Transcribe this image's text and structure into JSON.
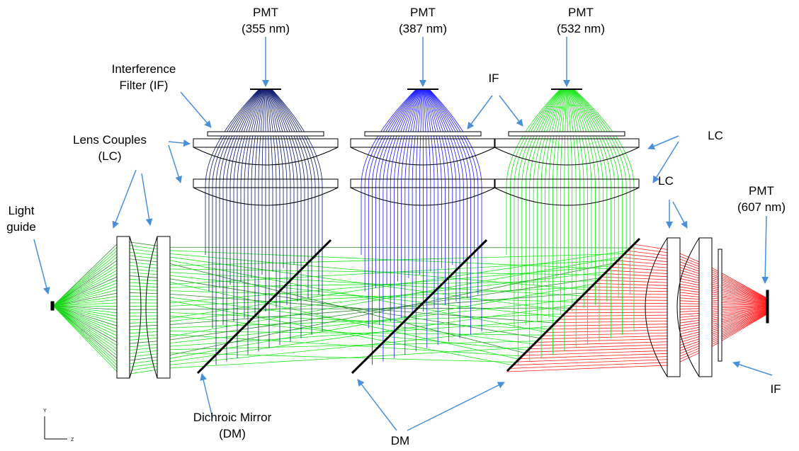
{
  "labels": [
    {
      "lines": [
        "PMT",
        "(355 nm)"
      ]
    },
    {
      "lines": [
        "PMT",
        "(387 nm)"
      ]
    },
    {
      "lines": [
        "PMT",
        "(532 nm)"
      ]
    },
    {
      "lines": [
        "Interference",
        "Filter (IF)"
      ]
    },
    {
      "lines": [
        "IF"
      ]
    },
    {
      "lines": [
        "Lens Couples",
        "(LC)"
      ]
    },
    {
      "lines": [
        "LC"
      ]
    },
    {
      "lines": [
        "LC"
      ]
    },
    {
      "lines": [
        "PMT",
        "(607 nm)"
      ]
    },
    {
      "lines": [
        "Light",
        "guide"
      ]
    },
    {
      "lines": [
        "Dichroic Mirror",
        "(DM)"
      ]
    },
    {
      "lines": [
        "DM"
      ]
    },
    {
      "lines": [
        "IF"
      ]
    }
  ],
  "axes": {
    "vertical": "Y",
    "horizontal": "Z"
  }
}
